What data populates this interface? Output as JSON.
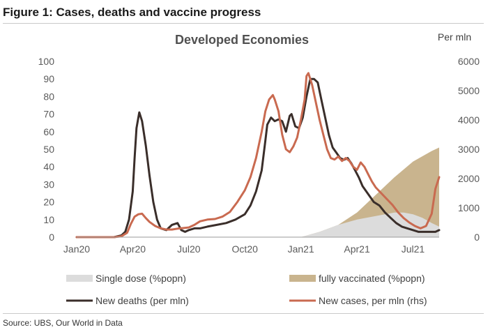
{
  "figure_title": "Figure 1: Cases, deaths and vaccine progress",
  "source": "Source:  UBS, Our World in Data",
  "colors": {
    "single_dose": "#dcdcdc",
    "fully_vaccinated": "#c9b48e",
    "new_deaths": "#3a2e2a",
    "new_cases": "#c96a50"
  },
  "chart_data": {
    "type": "line",
    "title": "Developed Economies",
    "right_axis_unit": "Per mln",
    "x_tick_labels": [
      "Jan20",
      "Apr20",
      "Jul20",
      "Oct20",
      "Jan21",
      "Apr21",
      "Jul21"
    ],
    "x_tick_months": [
      0,
      3,
      6,
      9,
      12,
      15,
      18
    ],
    "x_range_months": [
      0,
      19.4
    ],
    "y_left_ticks": [
      "0",
      "10",
      "20",
      "30",
      "40",
      "50",
      "60",
      "70",
      "80",
      "90",
      "100"
    ],
    "y_left_range": [
      0,
      100
    ],
    "y_right_ticks": [
      "0",
      "1000",
      "2000",
      "3000",
      "4000",
      "5000",
      "6000"
    ],
    "y_right_range": [
      0,
      6000
    ],
    "legend": [
      {
        "key": "single_dose",
        "label": "Single dose (%popn)",
        "kind": "area"
      },
      {
        "key": "fully_vaccinated",
        "label": "fully vaccinated (%popn)",
        "kind": "area"
      },
      {
        "key": "new_deaths",
        "label": "New deaths (per mln)",
        "kind": "line"
      },
      {
        "key": "new_cases",
        "label": "New cases, per mln (rhs)",
        "kind": "line"
      }
    ],
    "series": [
      {
        "key": "fully_vaccinated",
        "name": "fully vaccinated (%popn)",
        "axis": "left",
        "kind": "area",
        "x": [
          12.0,
          13.0,
          14.0,
          15.0,
          16.0,
          17.0,
          18.0,
          19.0,
          19.4
        ],
        "y": [
          0,
          3,
          7,
          14,
          24,
          34,
          43,
          49,
          51
        ]
      },
      {
        "key": "single_dose",
        "name": "Single dose (%popn)",
        "axis": "left",
        "kind": "area",
        "x": [
          12.0,
          13.0,
          14.0,
          15.0,
          16.0,
          16.5,
          17.0,
          17.5,
          18.0,
          18.5,
          19.0,
          19.4
        ],
        "y": [
          0,
          3,
          7,
          10,
          12,
          13,
          14,
          14,
          13,
          11,
          8,
          6
        ]
      },
      {
        "key": "new_deaths",
        "name": "New deaths (per mln)",
        "axis": "left",
        "kind": "line",
        "x": [
          0,
          1,
          2,
          2.4,
          2.6,
          2.8,
          3.0,
          3.1,
          3.2,
          3.35,
          3.5,
          3.7,
          3.9,
          4.1,
          4.3,
          4.5,
          4.8,
          5.1,
          5.4,
          5.6,
          5.8,
          6.0,
          6.3,
          6.6,
          7.0,
          7.5,
          8.0,
          8.5,
          9.0,
          9.3,
          9.6,
          9.9,
          10.1,
          10.2,
          10.4,
          10.6,
          10.8,
          11.0,
          11.2,
          11.4,
          11.5,
          11.7,
          11.9,
          12.1,
          12.3,
          12.5,
          12.7,
          12.9,
          13.1,
          13.3,
          13.5,
          13.7,
          13.9,
          14.1,
          14.3,
          14.5,
          14.7,
          14.9,
          15.1,
          15.3,
          15.5,
          15.7,
          15.9,
          16.2,
          16.5,
          16.8,
          17.1,
          17.4,
          17.7,
          18.0,
          18.3,
          18.6,
          18.9,
          19.2,
          19.4
        ],
        "y": [
          0,
          0,
          0,
          1,
          3,
          10,
          26,
          45,
          62,
          71,
          66,
          52,
          35,
          20,
          10,
          5,
          4,
          7,
          8,
          4,
          3,
          4,
          5,
          5,
          6,
          7,
          8,
          10,
          13,
          18,
          26,
          38,
          55,
          64,
          68,
          66,
          67,
          66,
          60,
          69,
          70,
          63,
          62,
          68,
          80,
          90,
          90,
          88,
          78,
          68,
          58,
          51,
          48,
          45,
          44,
          45,
          42,
          38,
          34,
          29,
          26,
          23,
          20,
          18,
          14,
          11,
          8,
          6,
          5,
          4,
          3,
          3,
          3,
          3,
          4
        ]
      },
      {
        "key": "new_cases",
        "name": "New cases, per mln (rhs)",
        "axis": "right",
        "kind": "line",
        "x": [
          0,
          1,
          2,
          2.4,
          2.7,
          2.9,
          3.1,
          3.3,
          3.5,
          3.7,
          3.9,
          4.2,
          4.5,
          4.8,
          5.1,
          5.4,
          5.7,
          6.0,
          6.3,
          6.6,
          7.0,
          7.4,
          7.8,
          8.2,
          8.6,
          9.0,
          9.3,
          9.6,
          9.9,
          10.1,
          10.3,
          10.5,
          10.6,
          10.8,
          11.0,
          11.2,
          11.4,
          11.6,
          11.8,
          12.0,
          12.2,
          12.3,
          12.4,
          12.6,
          12.8,
          13.0,
          13.2,
          13.4,
          13.6,
          13.8,
          14.0,
          14.2,
          14.4,
          14.6,
          14.8,
          15.0,
          15.2,
          15.4,
          15.6,
          15.8,
          16.0,
          16.3,
          16.6,
          16.9,
          17.2,
          17.5,
          17.8,
          18.1,
          18.4,
          18.7,
          19.0,
          19.2,
          19.4
        ],
        "y": [
          0,
          0,
          0,
          30,
          150,
          450,
          700,
          780,
          800,
          650,
          520,
          380,
          300,
          260,
          260,
          290,
          310,
          330,
          420,
          540,
          600,
          620,
          700,
          860,
          1200,
          1600,
          2050,
          2700,
          3600,
          4300,
          4700,
          4850,
          4700,
          4300,
          3500,
          3000,
          2900,
          3100,
          3400,
          4000,
          4700,
          5500,
          5600,
          5200,
          4600,
          4000,
          3500,
          3000,
          2700,
          2650,
          2750,
          2600,
          2700,
          2600,
          2400,
          2300,
          2550,
          2400,
          2150,
          1900,
          1700,
          1500,
          1300,
          1100,
          850,
          650,
          500,
          380,
          300,
          380,
          800,
          1650,
          2050
        ]
      }
    ]
  }
}
